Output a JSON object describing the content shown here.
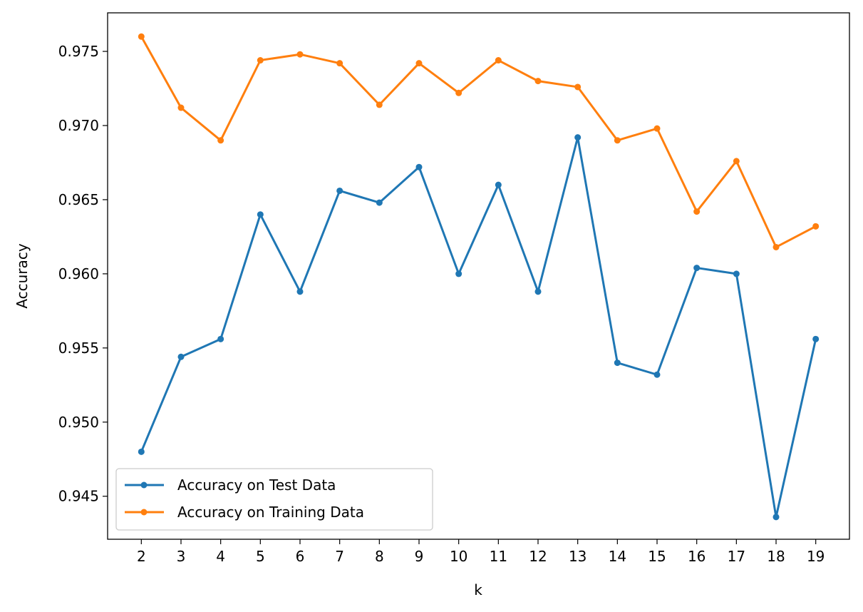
{
  "chart_data": {
    "type": "line",
    "title": "",
    "xlabel": "k",
    "ylabel": "Accuracy",
    "x": [
      2,
      3,
      4,
      5,
      6,
      7,
      8,
      9,
      10,
      11,
      12,
      13,
      14,
      15,
      16,
      17,
      18,
      19
    ],
    "x_ticks": [
      "2",
      "3",
      "4",
      "5",
      "6",
      "7",
      "8",
      "9",
      "10",
      "11",
      "12",
      "13",
      "14",
      "15",
      "16",
      "17",
      "18",
      "19"
    ],
    "y_ticks": [
      "0.945",
      "0.950",
      "0.955",
      "0.960",
      "0.965",
      "0.970",
      "0.975"
    ],
    "y_tick_values": [
      0.945,
      0.95,
      0.955,
      0.96,
      0.965,
      0.97,
      0.975
    ],
    "xlim": [
      1.15,
      19.85
    ],
    "ylim": [
      0.9421,
      0.9776
    ],
    "grid": false,
    "legend_position": "lower-left",
    "series": [
      {
        "name": "Accuracy on Test Data",
        "color": "#1f77b4",
        "marker": "circle",
        "values": [
          0.948,
          0.9544,
          0.9556,
          0.964,
          0.9588,
          0.9656,
          0.9648,
          0.9672,
          0.96,
          0.966,
          0.9588,
          0.9692,
          0.954,
          0.9532,
          0.9604,
          0.96,
          0.9436,
          0.9556
        ]
      },
      {
        "name": "Accuracy on Training Data",
        "color": "#ff7f0e",
        "marker": "circle",
        "values": [
          0.976,
          0.9712,
          0.969,
          0.9744,
          0.9748,
          0.9742,
          0.9714,
          0.9742,
          0.9722,
          0.9744,
          0.973,
          0.9726,
          0.969,
          0.9698,
          0.9642,
          0.9676,
          0.9618,
          0.9632
        ]
      }
    ]
  }
}
